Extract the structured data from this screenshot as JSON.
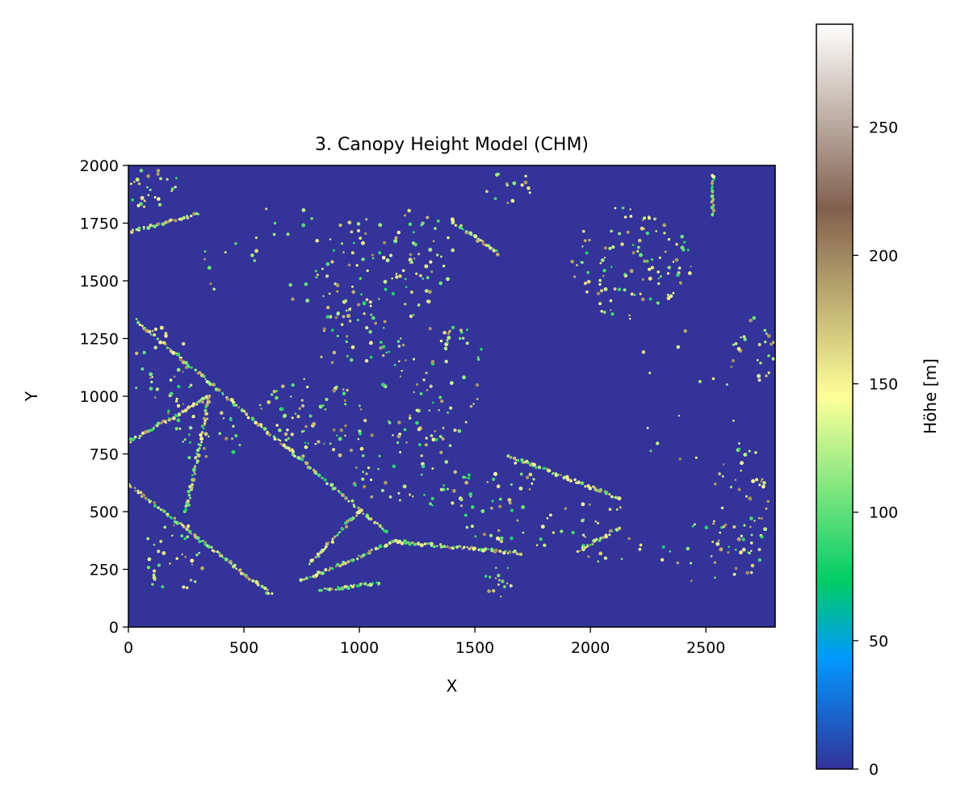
{
  "chart_data": {
    "type": "heatmap",
    "title": "3. Canopy Height Model (CHM)",
    "xlabel": "X",
    "ylabel": "Y",
    "xlim": [
      0,
      2800
    ],
    "ylim": [
      0,
      2000
    ],
    "x_ticks": [
      0,
      500,
      1000,
      1500,
      2000,
      2500
    ],
    "y_ticks": [
      0,
      250,
      500,
      750,
      1000,
      1250,
      1500,
      1750,
      2000
    ],
    "colorbar": {
      "label": "Höhe [m]",
      "colormap": "terrain",
      "range": [
        0,
        290
      ],
      "ticks": [
        0,
        50,
        100,
        150,
        200,
        250
      ],
      "stops": [
        {
          "value": 0,
          "color": "#333399"
        },
        {
          "value": 43,
          "color": "#0198fe"
        },
        {
          "value": 73,
          "color": "#01cc66"
        },
        {
          "value": 145,
          "color": "#ffff99"
        },
        {
          "value": 218,
          "color": "#80604d"
        },
        {
          "value": 290,
          "color": "#ffffff"
        }
      ]
    },
    "background_color": "#333399",
    "background_value": 0,
    "tree_value_range": [
      80,
      200
    ],
    "tree_clusters": [
      {
        "x": 100,
        "y": 1900,
        "rx": 130,
        "ry": 90,
        "n": 30
      },
      {
        "x": 1000,
        "y": 1550,
        "rx": 200,
        "ry": 230,
        "n": 60
      },
      {
        "x": 1250,
        "y": 1600,
        "rx": 170,
        "ry": 220,
        "n": 50
      },
      {
        "x": 2180,
        "y": 1580,
        "rx": 260,
        "ry": 260,
        "n": 110
      },
      {
        "x": 1000,
        "y": 1250,
        "rx": 200,
        "ry": 150,
        "n": 40
      },
      {
        "x": 1300,
        "y": 1100,
        "rx": 250,
        "ry": 300,
        "n": 60
      },
      {
        "x": 800,
        "y": 900,
        "rx": 250,
        "ry": 180,
        "n": 70
      },
      {
        "x": 350,
        "y": 850,
        "rx": 150,
        "ry": 150,
        "n": 30
      },
      {
        "x": 1200,
        "y": 700,
        "rx": 250,
        "ry": 200,
        "n": 60
      },
      {
        "x": 1600,
        "y": 550,
        "rx": 200,
        "ry": 180,
        "n": 50
      },
      {
        "x": 1600,
        "y": 200,
        "rx": 60,
        "ry": 80,
        "n": 15
      },
      {
        "x": 2650,
        "y": 500,
        "rx": 130,
        "ry": 300,
        "n": 60
      },
      {
        "x": 2700,
        "y": 1200,
        "rx": 100,
        "ry": 150,
        "n": 25
      },
      {
        "x": 150,
        "y": 1100,
        "rx": 130,
        "ry": 200,
        "n": 35
      },
      {
        "x": 200,
        "y": 300,
        "rx": 150,
        "ry": 150,
        "n": 35
      },
      {
        "x": 2000,
        "y": 400,
        "rx": 250,
        "ry": 150,
        "n": 30
      },
      {
        "x": 2500,
        "y": 300,
        "rx": 200,
        "ry": 150,
        "n": 20
      },
      {
        "x": 600,
        "y": 1600,
        "rx": 300,
        "ry": 250,
        "n": 25
      },
      {
        "x": 2400,
        "y": 1000,
        "rx": 250,
        "ry": 300,
        "n": 15
      },
      {
        "x": 1650,
        "y": 1900,
        "rx": 100,
        "ry": 80,
        "n": 15
      }
    ],
    "tree_rows": [
      {
        "from": [
          30,
          1330
        ],
        "to": [
          1120,
          410
        ],
        "n": 120
      },
      {
        "from": [
          0,
          800
        ],
        "to": [
          350,
          1000
        ],
        "n": 50
      },
      {
        "from": [
          250,
          500
        ],
        "to": [
          350,
          1000
        ],
        "n": 50
      },
      {
        "from": [
          0,
          620
        ],
        "to": [
          620,
          140
        ],
        "n": 80
      },
      {
        "from": [
          750,
          200
        ],
        "to": [
          1150,
          370
        ],
        "n": 45
      },
      {
        "from": [
          1150,
          370
        ],
        "to": [
          1700,
          320
        ],
        "n": 60
      },
      {
        "from": [
          780,
          270
        ],
        "to": [
          1000,
          500
        ],
        "n": 30
      },
      {
        "from": [
          1650,
          740
        ],
        "to": [
          2120,
          560
        ],
        "n": 60
      },
      {
        "from": [
          1950,
          330
        ],
        "to": [
          2120,
          430
        ],
        "n": 25
      },
      {
        "from": [
          830,
          160
        ],
        "to": [
          1090,
          190
        ],
        "n": 30
      },
      {
        "from": [
          1400,
          1760
        ],
        "to": [
          1600,
          1620
        ],
        "n": 30
      },
      {
        "from": [
          2530,
          1960
        ],
        "to": [
          2530,
          1780
        ],
        "n": 20
      },
      {
        "from": [
          0,
          1710
        ],
        "to": [
          300,
          1790
        ],
        "n": 30
      },
      {
        "from": [
          1370,
          1200
        ],
        "to": [
          1400,
          1300
        ],
        "n": 10
      }
    ]
  }
}
